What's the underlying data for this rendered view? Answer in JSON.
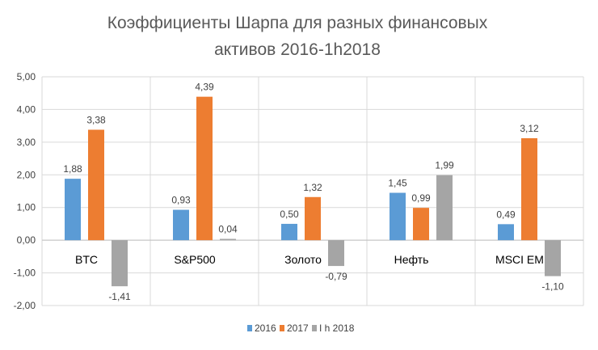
{
  "chart_data": {
    "type": "bar",
    "title_lines": [
      "Коэффициенты Шарпа для разных финансовых",
      "активов 2016-1h2018"
    ],
    "categories": [
      "BTC",
      "S&P500",
      "Золото",
      "Нефть",
      "MSCI EM"
    ],
    "series": [
      {
        "name": "2016",
        "color": "#5B9BD5",
        "values": [
          1.88,
          0.93,
          0.5,
          1.45,
          0.49
        ],
        "labels": [
          "1,88",
          "0,93",
          "0,50",
          "1,45",
          "0,49"
        ]
      },
      {
        "name": "2017",
        "color": "#ED7D31",
        "values": [
          3.38,
          4.39,
          1.32,
          0.99,
          3.12
        ],
        "labels": [
          "3,38",
          "4,39",
          "1,32",
          "0,99",
          "3,12"
        ]
      },
      {
        "name": "I h 2018",
        "color": "#A5A5A5",
        "values": [
          -1.41,
          0.04,
          -0.79,
          1.99,
          -1.1
        ],
        "labels": [
          "-1,41",
          "0,04",
          "-0,79",
          "1,99",
          "-1,10"
        ]
      }
    ],
    "y_ticks": [
      5,
      4,
      3,
      2,
      1,
      0,
      -1,
      -2
    ],
    "y_tick_labels": [
      "5,00",
      "4,00",
      "3,00",
      "2,00",
      "1,00",
      "0,00",
      "-1,00",
      "-2,00"
    ],
    "ylim": [
      -2,
      5
    ],
    "grid": true,
    "legend_position": "bottom"
  }
}
